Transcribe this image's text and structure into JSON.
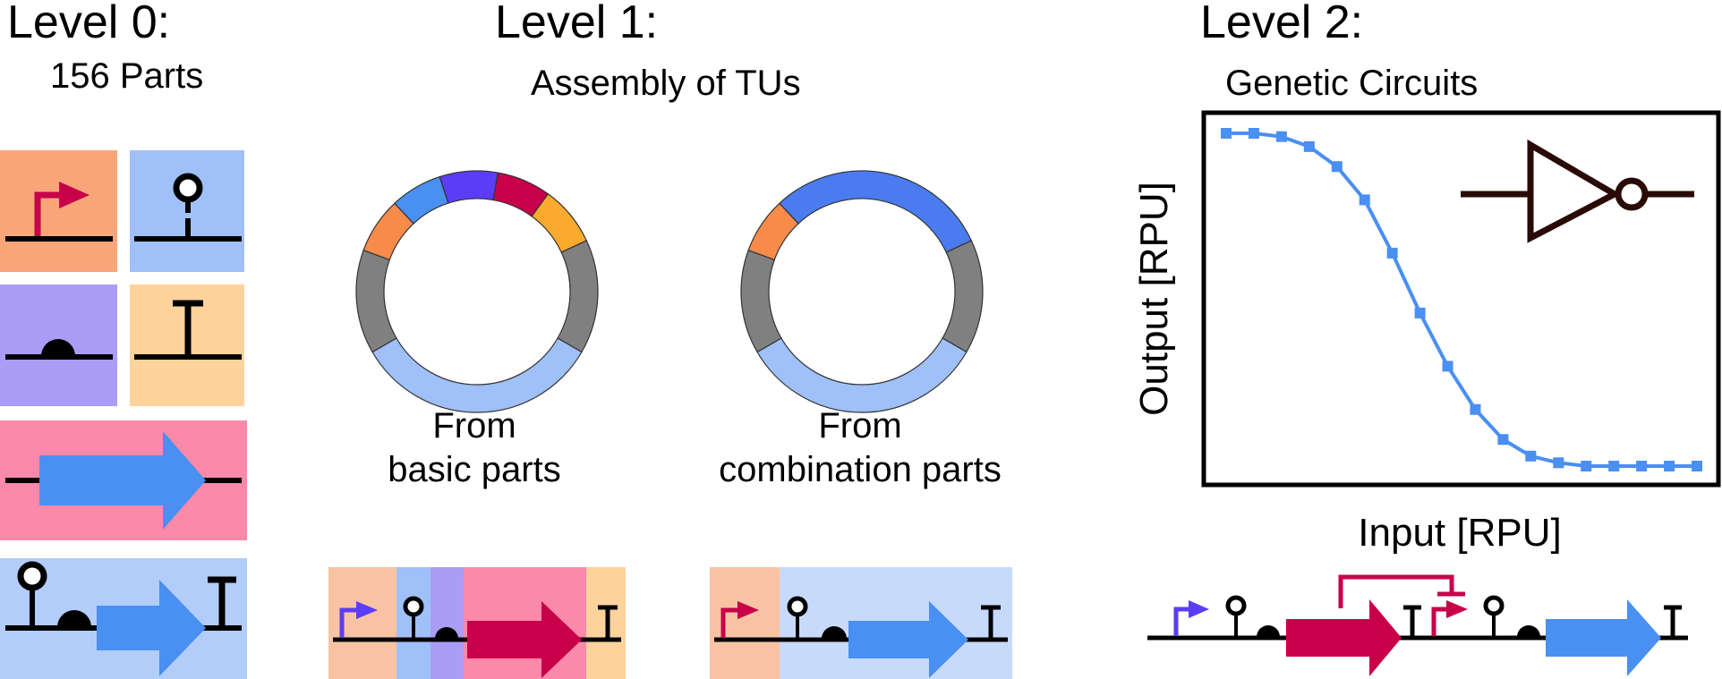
{
  "level0": {
    "title": "Level 0:",
    "subtitle": "156 Parts",
    "tiles": [
      {
        "kind": "promoter",
        "color": "#f9a57a"
      },
      {
        "kind": "ribozyme",
        "color": "#9fc0f9"
      },
      {
        "kind": "rbs",
        "color": "#ab9cf6"
      },
      {
        "kind": "terminator",
        "color": "#fdd39b"
      },
      {
        "kind": "cds",
        "color": "#fb89a9"
      },
      {
        "kind": "combination",
        "color": "#b2cdf9"
      }
    ]
  },
  "level1": {
    "title": "Level 1:",
    "subtitle": "Assembly of TUs",
    "ring_left_label_1": "From",
    "ring_left_label_2": "basic parts",
    "ring_right_label_1": "From",
    "ring_right_label_2": "combination parts"
  },
  "level2": {
    "title": "Level 2:",
    "subtitle": "Genetic Circuits",
    "ylabel": "Output [RPU]",
    "xlabel": "Input [RPU]"
  },
  "colors": {
    "promoter_arrow": "#c8004a",
    "blue_cds": "#4a8ff2",
    "red_cds": "#c8004a",
    "purple_promoter": "#5b3df5",
    "curve": "#4a8ff2",
    "not_gate": "#2a0a05"
  },
  "chart_data": {
    "type": "line",
    "title": "",
    "xlabel": "Input [RPU]",
    "ylabel": "Output [RPU]",
    "x": [
      0,
      1,
      2,
      3,
      4,
      5,
      6,
      7,
      8,
      9,
      10,
      11,
      12,
      13,
      14,
      15,
      16,
      17
    ],
    "series": [
      {
        "values": [
          1.0,
          1.0,
          0.99,
          0.96,
          0.9,
          0.8,
          0.64,
          0.46,
          0.3,
          0.17,
          0.08,
          0.03,
          0.01,
          0.0,
          0.0,
          0.0,
          0.0,
          0.0
        ]
      }
    ],
    "grid": false
  }
}
